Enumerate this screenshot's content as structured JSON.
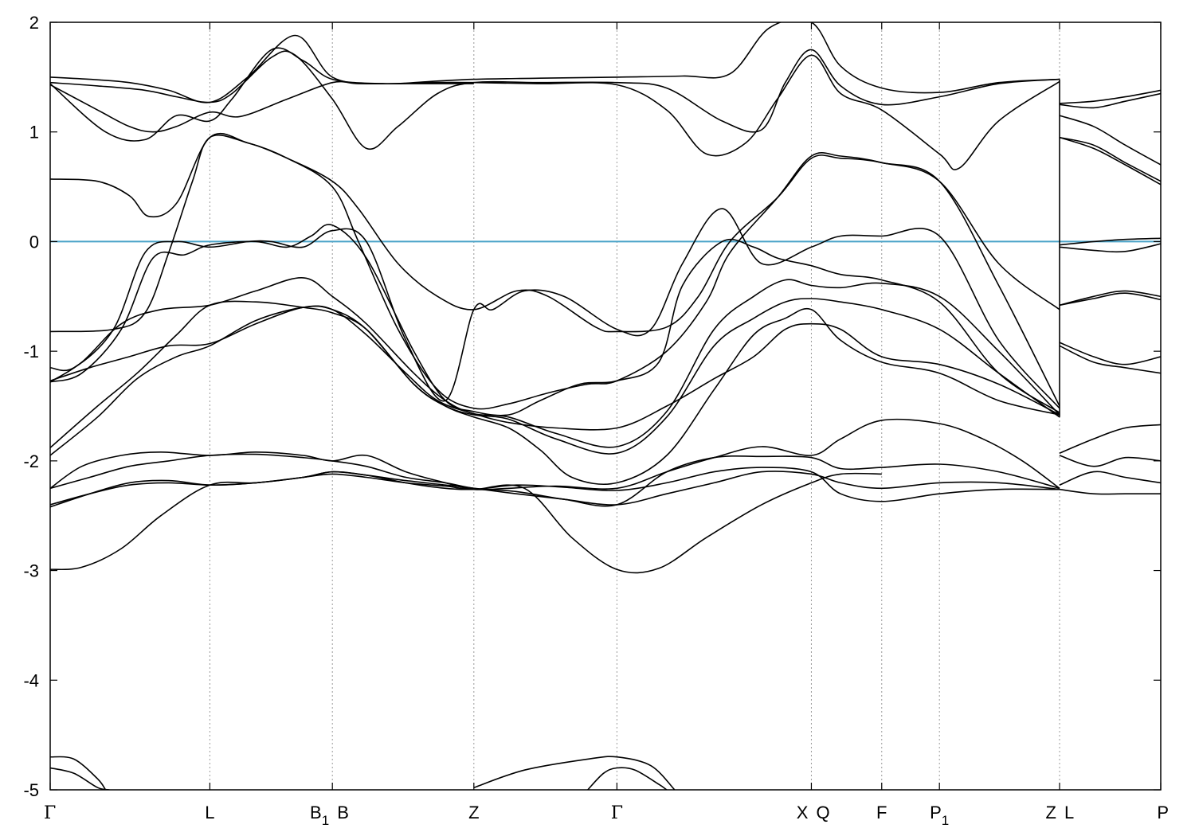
{
  "chart_data": {
    "type": "line",
    "title": "",
    "xlabel": "",
    "ylabel": "",
    "ylim": [
      -5,
      2
    ],
    "yticks": [
      "2",
      "1",
      "0",
      "-1",
      "-2",
      "-3",
      "-4",
      "-5"
    ],
    "ytick_values": [
      2,
      1,
      0,
      -1,
      -2,
      -3,
      -4,
      -5
    ],
    "xlim": [
      0,
      14.05
    ],
    "kpoints": [
      {
        "label": "Γ",
        "sub": "",
        "x": 0
      },
      {
        "label": "L",
        "sub": "",
        "x": 2.02
      },
      {
        "label": "B",
        "sub": "1",
        "x": 3.57
      },
      {
        "label": "B",
        "sub": "",
        "x": 3.57
      },
      {
        "label": "Z",
        "sub": "",
        "x": 5.36
      },
      {
        "label": "Γ",
        "sub": "",
        "x": 7.17
      },
      {
        "label": "X",
        "sub": "",
        "x": 9.63
      },
      {
        "label": "Q",
        "sub": "",
        "x": 9.63
      },
      {
        "label": "F",
        "sub": "",
        "x": 10.52
      },
      {
        "label": "P",
        "sub": "1",
        "x": 11.25
      },
      {
        "label": "Z",
        "sub": "",
        "x": 12.77
      },
      {
        "label": "L",
        "sub": "",
        "x": 12.77
      },
      {
        "label": "P",
        "sub": "",
        "x": 14.05
      }
    ],
    "fermi_level": 0,
    "grid": "vertical dotted lines at k-points",
    "colors": {
      "bands": "#000000",
      "fermi": "#4aa3c8",
      "grid": "#9a9a9a"
    },
    "series": [
      {
        "x": [
          0,
          0.5,
          1.0,
          1.5,
          2.02,
          2.5,
          3.1,
          3.57,
          4.2,
          4.8,
          5.36,
          6.2,
          7.17,
          8.0,
          8.6,
          9.1,
          9.63,
          10.0,
          10.52,
          11.25,
          12.0,
          12.77
        ],
        "y": [
          1.5,
          1.48,
          1.45,
          1.38,
          1.27,
          1.5,
          1.88,
          1.5,
          1.44,
          1.46,
          1.48,
          1.49,
          1.5,
          1.51,
          1.53,
          1.95,
          2.0,
          1.6,
          1.4,
          1.36,
          1.45,
          1.48
        ]
      },
      {
        "x": [
          0,
          0.6,
          1.2,
          1.6,
          2.02,
          2.3,
          2.8,
          3.1,
          3.57,
          4.0,
          4.4,
          4.9,
          5.36,
          6.2,
          7.17,
          7.8,
          8.5,
          9.0,
          9.3,
          9.63,
          10.0,
          10.52,
          11.25,
          12.0,
          12.77
        ],
        "y": [
          1.45,
          1.42,
          1.38,
          1.32,
          1.27,
          1.35,
          1.68,
          1.7,
          1.3,
          0.85,
          1.05,
          1.35,
          1.45,
          1.45,
          1.45,
          1.4,
          1.1,
          1.02,
          1.45,
          1.75,
          1.42,
          1.25,
          1.32,
          1.44,
          1.48
        ]
      },
      {
        "x": [
          0,
          0.7,
          1.2,
          1.6,
          2.02,
          2.3,
          2.8,
          3.2,
          3.57,
          4.2,
          4.8,
          5.36,
          6.2,
          7.17,
          7.8,
          8.3,
          8.8,
          9.2,
          9.63,
          10.0,
          10.52,
          11.25,
          11.5,
          12.0,
          12.77
        ],
        "y": [
          1.44,
          1.0,
          0.93,
          1.15,
          1.1,
          1.3,
          1.75,
          1.65,
          1.48,
          1.44,
          1.45,
          1.45,
          1.44,
          1.43,
          1.2,
          0.8,
          0.9,
          1.3,
          1.7,
          1.35,
          1.2,
          0.8,
          0.67,
          1.1,
          1.46
        ]
      },
      {
        "x": [
          0,
          0.6,
          1.0,
          1.3,
          1.6,
          2.02,
          2.4,
          3.0,
          3.57,
          3.9,
          4.4,
          4.9,
          5.36
        ],
        "y": [
          1.43,
          1.2,
          1.05,
          1.0,
          1.05,
          1.18,
          1.14,
          1.3,
          1.45,
          1.44,
          1.44,
          1.44,
          1.44
        ]
      },
      {
        "x": [
          0,
          0.6,
          1.0,
          1.25,
          1.6,
          2.02,
          2.5,
          3.0,
          3.57,
          3.9,
          4.4,
          4.9,
          5.36,
          5.9,
          6.3,
          6.9,
          7.17,
          7.8,
          8.2,
          8.6,
          9.2,
          9.63,
          10.0,
          10.52,
          11.25,
          12.0,
          12.77
        ],
        "y": [
          0.57,
          0.55,
          0.42,
          0.23,
          0.35,
          0.95,
          0.9,
          0.76,
          0.55,
          0.3,
          -0.2,
          -0.5,
          -0.62,
          -0.45,
          -0.5,
          -0.78,
          -0.82,
          -0.78,
          -0.5,
          0.0,
          0.4,
          0.76,
          0.76,
          0.72,
          0.55,
          -0.2,
          -0.62
        ]
      },
      {
        "x": [
          0,
          0.8,
          1.2,
          1.5,
          1.8,
          2.02,
          2.5,
          3.0,
          3.57,
          3.9,
          4.4,
          4.9,
          5.36,
          5.8,
          6.3,
          6.8,
          7.17,
          7.8,
          8.3,
          8.6,
          9.2,
          9.63,
          10.0,
          10.52,
          11.25,
          12.0,
          12.77
        ],
        "y": [
          -0.82,
          -0.8,
          -0.65,
          -0.1,
          0.55,
          0.95,
          0.9,
          0.76,
          0.5,
          0.0,
          -0.8,
          -1.35,
          -1.52,
          -1.48,
          -1.38,
          -1.3,
          -1.27,
          -1.0,
          -0.55,
          -0.1,
          0.4,
          0.78,
          0.78,
          0.72,
          0.55,
          -0.4,
          -1.5
        ]
      },
      {
        "x": [
          0,
          0.3,
          0.8,
          1.2,
          1.6,
          2.02,
          2.5,
          2.8,
          3.2,
          3.57,
          4.0,
          4.5,
          5.0,
          5.36,
          5.6,
          6.0,
          6.5,
          7.17,
          7.6,
          8.0,
          8.5,
          9.0,
          9.63,
          10.0,
          10.52,
          11.25,
          12.0,
          12.77
        ],
        "y": [
          -1.15,
          -1.15,
          -0.8,
          -0.1,
          0.0,
          -0.05,
          0.0,
          0.0,
          -0.05,
          0.1,
          0.0,
          -0.9,
          -1.45,
          -0.62,
          -0.62,
          -0.45,
          -0.5,
          -0.8,
          -0.8,
          -0.2,
          0.3,
          -0.2,
          -0.05,
          0.05,
          0.05,
          0.05,
          -0.9,
          -1.52
        ]
      },
      {
        "x": [
          0,
          0.4,
          0.9,
          1.3,
          1.7,
          2.02,
          2.6,
          3.0,
          3.3,
          3.57,
          4.0,
          4.6,
          5.0,
          5.36,
          5.8,
          6.2,
          6.7,
          7.17,
          7.7,
          8.0,
          8.5,
          8.9,
          9.2,
          9.63,
          10.0,
          10.52,
          11.25,
          12.0,
          12.77
        ],
        "y": [
          -1.28,
          -1.2,
          -0.8,
          -0.15,
          -0.12,
          -0.03,
          0.0,
          -0.05,
          0.05,
          0.15,
          -0.15,
          -1.0,
          -1.45,
          -1.55,
          -1.58,
          -1.45,
          -1.3,
          -1.27,
          -1.1,
          -0.4,
          0.0,
          -0.05,
          -0.15,
          -0.22,
          -0.3,
          -0.35,
          -0.55,
          -1.2,
          -1.56
        ]
      },
      {
        "x": [
          0,
          0.4,
          0.9,
          1.4,
          2.02,
          2.6,
          3.2,
          3.57,
          4.0,
          4.6,
          5.0,
          5.36,
          5.8,
          6.4,
          7.17,
          7.8,
          8.4,
          8.9,
          9.3,
          9.63,
          10.0,
          10.52,
          11.25,
          12.0,
          12.77
        ],
        "y": [
          -1.28,
          -1.1,
          -0.75,
          -0.62,
          -0.58,
          -0.45,
          -0.33,
          -0.5,
          -0.75,
          -1.2,
          -1.45,
          -1.57,
          -1.6,
          -1.75,
          -1.87,
          -1.55,
          -0.8,
          -0.5,
          -0.35,
          -0.4,
          -0.42,
          -0.38,
          -0.5,
          -1.0,
          -1.58
        ]
      },
      {
        "x": [
          0,
          0.5,
          1.0,
          1.5,
          2.02,
          2.6,
          3.2,
          3.57,
          4.0,
          4.6,
          5.0,
          5.36,
          5.8,
          6.4,
          7.17,
          7.8,
          8.4,
          8.9,
          9.3,
          9.63,
          10.0,
          10.52,
          11.25,
          12.0,
          12.77
        ],
        "y": [
          -1.27,
          -1.15,
          -1.05,
          -0.95,
          -0.93,
          -0.75,
          -0.6,
          -0.62,
          -0.8,
          -1.3,
          -1.5,
          -1.58,
          -1.62,
          -1.8,
          -1.93,
          -1.6,
          -0.95,
          -0.7,
          -0.55,
          -0.52,
          -0.55,
          -0.62,
          -0.8,
          -1.2,
          -1.6
        ]
      },
      {
        "x": [
          0,
          0.6,
          1.1,
          1.6,
          2.02,
          2.6,
          3.2,
          3.57,
          4.0,
          4.6,
          5.0,
          5.36,
          5.8,
          6.2,
          6.6,
          7.17,
          7.8,
          8.4,
          8.9,
          9.3,
          9.63,
          10.0,
          10.52,
          11.25,
          12.0,
          12.77
        ],
        "y": [
          -1.88,
          -1.5,
          -1.2,
          -0.85,
          -0.58,
          -0.55,
          -0.6,
          -0.65,
          -0.8,
          -1.3,
          -1.5,
          -1.6,
          -1.7,
          -1.9,
          -2.15,
          -2.2,
          -1.95,
          -1.35,
          -0.85,
          -0.7,
          -0.62,
          -0.9,
          -1.1,
          -1.2,
          -1.45,
          -1.58
        ]
      },
      {
        "x": [
          0,
          0.6,
          1.1,
          1.6,
          2.02,
          2.6,
          3.2,
          3.57,
          4.0,
          4.5,
          4.9,
          5.36,
          5.8,
          6.4,
          7.17,
          7.8,
          8.4,
          8.9,
          9.3,
          9.63,
          10.0,
          10.52,
          11.25,
          12.0,
          12.77
        ],
        "y": [
          -1.95,
          -1.6,
          -1.25,
          -1.05,
          -0.95,
          -0.72,
          -0.6,
          -0.62,
          -0.85,
          -1.2,
          -1.45,
          -1.57,
          -1.65,
          -1.7,
          -1.7,
          -1.5,
          -1.25,
          -1.05,
          -0.8,
          -0.75,
          -0.8,
          -1.05,
          -1.12,
          -1.3,
          -1.58
        ]
      },
      {
        "x": [
          0,
          0.4,
          0.9,
          1.4,
          2.02,
          2.6,
          3.2,
          3.57,
          4.0,
          4.5,
          5.0,
          5.36,
          5.8,
          6.4,
          7.17,
          7.8,
          8.4,
          9.0,
          9.63,
          10.0,
          10.52,
          11.25,
          11.8,
          12.3,
          12.77
        ],
        "y": [
          -2.25,
          -2.05,
          -1.95,
          -1.92,
          -1.95,
          -1.92,
          -1.95,
          -2.0,
          -1.95,
          -2.1,
          -2.2,
          -2.26,
          -2.25,
          -2.23,
          -2.25,
          -2.1,
          -1.97,
          -1.87,
          -1.95,
          -1.8,
          -1.63,
          -1.66,
          -1.8,
          -2.0,
          -2.25
        ]
      },
      {
        "x": [
          0,
          0.5,
          1.0,
          1.5,
          2.02,
          2.6,
          3.2,
          3.57,
          4.0,
          4.5,
          5.0,
          5.36,
          5.9,
          6.5,
          7.17,
          7.8,
          8.4,
          9.0,
          9.63,
          10.0,
          10.52,
          11.25,
          12.0,
          12.77
        ],
        "y": [
          -2.25,
          -2.15,
          -2.05,
          -2.0,
          -1.95,
          -1.94,
          -1.97,
          -2.0,
          -2.05,
          -2.15,
          -2.2,
          -2.25,
          -2.28,
          -2.35,
          -2.4,
          -2.1,
          -1.97,
          -1.96,
          -1.97,
          -2.07,
          -2.06,
          -2.03,
          -2.1,
          -2.25
        ]
      },
      {
        "x": [
          0,
          0.5,
          1.0,
          1.5,
          2.02,
          2.6,
          3.2,
          3.57,
          4.0,
          4.5,
          5.0,
          5.36,
          5.9,
          6.5,
          7.17,
          7.8,
          8.4,
          9.0,
          9.63,
          10.0,
          10.52,
          11.25,
          12.0,
          12.77
        ],
        "y": [
          -2.4,
          -2.3,
          -2.22,
          -2.2,
          -2.22,
          -2.2,
          -2.15,
          -2.1,
          -2.13,
          -2.18,
          -2.22,
          -2.25,
          -2.3,
          -2.35,
          -2.4,
          -2.3,
          -2.2,
          -2.1,
          -2.12,
          -2.2,
          -2.25,
          -2.2,
          -2.2,
          -2.26
        ]
      },
      {
        "x": [
          0,
          0.5,
          1.0,
          1.5,
          2.02,
          2.6,
          3.2,
          3.57,
          4.0,
          4.5,
          5.0,
          5.36,
          5.9,
          6.5,
          7.17,
          7.8,
          8.4,
          9.0,
          9.63,
          10.0,
          10.52,
          11.25,
          12.0,
          12.77
        ],
        "y": [
          -2.42,
          -2.3,
          -2.2,
          -2.18,
          -2.22,
          -2.2,
          -2.15,
          -2.12,
          -2.15,
          -2.2,
          -2.23,
          -2.26,
          -2.22,
          -2.24,
          -2.27,
          -2.2,
          -2.1,
          -2.06,
          -2.1,
          -2.3,
          -2.37,
          -2.3,
          -2.26,
          -2.26
        ]
      },
      {
        "x": [
          0,
          0.4,
          0.9,
          1.4,
          2.02,
          2.6,
          3.2,
          3.57,
          4.0,
          4.5,
          5.0,
          5.36,
          6.0,
          6.6,
          7.17,
          7.7,
          8.3,
          9.0,
          9.63,
          10.0,
          10.52
        ],
        "y": [
          -2.99,
          -2.97,
          -2.8,
          -2.5,
          -2.22,
          -2.2,
          -2.15,
          -2.1,
          -2.13,
          -2.2,
          -2.25,
          -2.26,
          -2.25,
          -2.7,
          -2.99,
          -2.98,
          -2.7,
          -2.4,
          -2.2,
          -2.12,
          -2.12
        ]
      },
      {
        "x": [
          0,
          0.3,
          0.6,
          0.7
        ],
        "y": [
          -4.7,
          -4.72,
          -4.9,
          -5.0
        ]
      },
      {
        "x": [
          0,
          0.3,
          0.6,
          0.75
        ],
        "y": [
          -4.8,
          -4.85,
          -4.98,
          -5.0
        ]
      },
      {
        "x": [
          5.36,
          6.0,
          6.8,
          7.17,
          7.6,
          7.9
        ],
        "y": [
          -4.98,
          -4.82,
          -4.72,
          -4.7,
          -4.78,
          -5.0
        ]
      },
      {
        "x": [
          6.8,
          7.0,
          7.17,
          7.4,
          7.7,
          7.8
        ],
        "y": [
          -5.0,
          -4.85,
          -4.8,
          -4.82,
          -4.95,
          -5.0
        ]
      },
      {
        "x": [
          12.77,
          13.2,
          13.6,
          14.05
        ],
        "y": [
          1.26,
          1.28,
          1.32,
          1.38
        ]
      },
      {
        "x": [
          12.77,
          13.2,
          13.6,
          14.05
        ],
        "y": [
          1.25,
          1.22,
          1.28,
          1.35
        ]
      },
      {
        "x": [
          12.77,
          13.2,
          13.6,
          14.05
        ],
        "y": [
          1.15,
          1.05,
          0.88,
          0.7
        ]
      },
      {
        "x": [
          12.77,
          13.2,
          13.6,
          14.05
        ],
        "y": [
          0.95,
          0.88,
          0.72,
          0.55
        ]
      },
      {
        "x": [
          12.77,
          13.2,
          13.6,
          14.05
        ],
        "y": [
          0.95,
          0.85,
          0.7,
          0.52
        ]
      },
      {
        "x": [
          12.77,
          13.2,
          13.6,
          14.05
        ],
        "y": [
          -0.03,
          0.0,
          0.02,
          0.03
        ]
      },
      {
        "x": [
          12.77,
          13.2,
          13.6,
          14.05
        ],
        "y": [
          -0.05,
          -0.08,
          -0.09,
          -0.02
        ]
      },
      {
        "x": [
          12.77,
          13.2,
          13.6,
          14.05
        ],
        "y": [
          -0.58,
          -0.5,
          -0.45,
          -0.5
        ]
      },
      {
        "x": [
          12.77,
          13.2,
          13.6,
          14.05
        ],
        "y": [
          -0.58,
          -0.52,
          -0.47,
          -0.53
        ]
      },
      {
        "x": [
          12.77,
          13.2,
          13.6,
          14.05
        ],
        "y": [
          -0.92,
          -1.05,
          -1.12,
          -1.05
        ]
      },
      {
        "x": [
          12.77,
          13.2,
          13.6,
          14.05
        ],
        "y": [
          -0.95,
          -1.1,
          -1.15,
          -1.2
        ]
      },
      {
        "x": [
          12.77,
          13.2,
          13.6,
          14.05
        ],
        "y": [
          -1.93,
          -1.8,
          -1.7,
          -1.67
        ]
      },
      {
        "x": [
          12.77,
          13.2,
          13.6,
          14.05
        ],
        "y": [
          -1.95,
          -2.05,
          -1.97,
          -2.0
        ]
      },
      {
        "x": [
          12.77,
          13.2,
          13.6,
          14.05
        ],
        "y": [
          -2.22,
          -2.1,
          -2.15,
          -2.2
        ]
      },
      {
        "x": [
          12.77,
          13.2,
          13.6,
          14.05
        ],
        "y": [
          -2.26,
          -2.3,
          -2.3,
          -2.3
        ]
      }
    ]
  }
}
